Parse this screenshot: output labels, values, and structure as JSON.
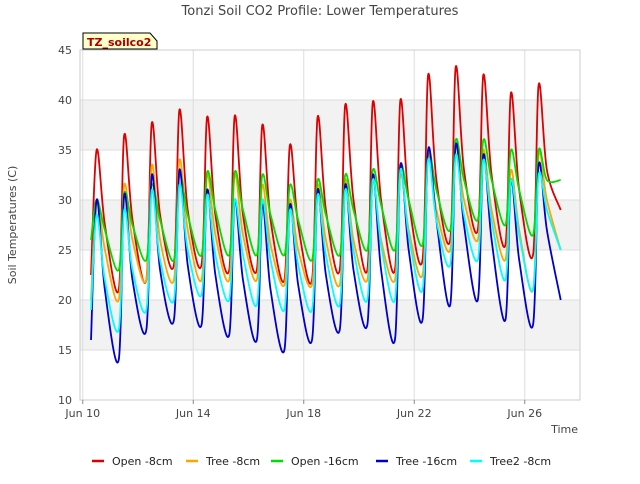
{
  "chart_data": {
    "type": "line",
    "title": "Tonzi Soil CO2 Profile: Lower Temperatures",
    "xlabel": "Time",
    "ylabel": "Soil Temperatures (C)",
    "annotation": "TZ_soilco2",
    "x_axis": {
      "min": "2000-06-10",
      "max": "2000-06-28",
      "tick_labels": [
        "Jun 10",
        "Jun 14",
        "Jun 18",
        "Jun 22",
        "Jun 26"
      ],
      "tick_days": [
        10,
        14,
        18,
        22,
        26
      ]
    },
    "y_axis": {
      "min": 10,
      "max": 45,
      "ticks": [
        10,
        15,
        20,
        25,
        30,
        35,
        40,
        45
      ]
    },
    "grid": true,
    "legend_position": "bottom",
    "days": [
      10.3,
      10.5,
      10.8,
      11.3,
      11.5,
      11.8,
      12.3,
      12.5,
      12.8,
      13.3,
      13.5,
      13.8,
      14.3,
      14.5,
      14.8,
      15.3,
      15.5,
      15.8,
      16.3,
      16.5,
      16.8,
      17.3,
      17.5,
      17.8,
      18.3,
      18.5,
      18.8,
      19.3,
      19.5,
      19.8,
      20.3,
      20.5,
      20.8,
      21.3,
      21.5,
      21.8,
      22.3,
      22.5,
      22.8,
      23.3,
      23.5,
      23.8,
      24.3,
      24.5,
      24.8,
      25.3,
      25.5,
      25.8,
      26.3,
      26.5,
      26.8,
      27.3,
      27.5,
      27.7
    ],
    "series": [
      {
        "name": "Open -8cm",
        "color": "#dd0000",
        "values": [
          22.5,
          35.0,
          27.5,
          21.0,
          36.5,
          28.0,
          22.0,
          37.7,
          28.5,
          23.5,
          39.0,
          29.0,
          23.5,
          38.3,
          28.5,
          23.0,
          38.4,
          28.5,
          23.0,
          37.5,
          28.0,
          22.0,
          35.5,
          27.5,
          22.0,
          38.3,
          29.0,
          23.0,
          39.5,
          30.0,
          23.0,
          39.8,
          30.0,
          23.0,
          40.0,
          30.0,
          24.0,
          42.5,
          32.0,
          26.0,
          43.3,
          33.0,
          27.0,
          42.5,
          32.5,
          25.5,
          40.7,
          31.0,
          24.5,
          41.5,
          33.0,
          29.0,
          null,
          null
        ]
      },
      {
        "name": "Tree -8cm",
        "color": "#ffa500",
        "values": [
          20.0,
          30.0,
          25.0,
          20.0,
          31.5,
          26.0,
          22.0,
          33.5,
          26.0,
          22.0,
          34.0,
          27.0,
          22.0,
          32.5,
          26.5,
          22.0,
          32.5,
          26.5,
          22.0,
          31.5,
          25.5,
          21.5,
          30.0,
          25.0,
          21.5,
          31.5,
          26.0,
          21.5,
          32.0,
          26.0,
          22.0,
          32.0,
          26.0,
          22.0,
          32.5,
          27.0,
          22.5,
          34.5,
          29.0,
          25.0,
          35.5,
          30.0,
          26.0,
          35.0,
          29.0,
          24.0,
          33.0,
          27.0,
          21.0,
          34.5,
          30.0,
          25.0,
          null,
          null
        ]
      },
      {
        "name": "Open -16cm",
        "color": "#00dd00",
        "values": [
          26.0,
          30.0,
          27.0,
          23.0,
          30.7,
          27.5,
          24.0,
          31.5,
          28.0,
          24.0,
          32.5,
          28.5,
          24.5,
          32.8,
          29.0,
          24.5,
          32.8,
          29.0,
          24.5,
          32.5,
          28.5,
          24.5,
          31.5,
          28.0,
          24.0,
          32.0,
          28.5,
          24.5,
          32.5,
          29.0,
          25.0,
          33.0,
          29.5,
          25.0,
          33.5,
          30.0,
          25.5,
          35.0,
          31.0,
          27.0,
          36.0,
          32.0,
          28.0,
          36.0,
          32.0,
          27.5,
          35.0,
          31.0,
          26.5,
          35.0,
          32.0,
          32.0,
          null,
          null
        ]
      },
      {
        "name": "Tree -16cm",
        "color": "#0000cc",
        "values": [
          16.0,
          30.0,
          21.0,
          14.0,
          30.5,
          22.0,
          17.0,
          32.5,
          23.0,
          18.0,
          33.0,
          23.5,
          17.5,
          31.0,
          22.5,
          16.5,
          30.0,
          22.0,
          16.0,
          29.5,
          21.0,
          15.0,
          29.5,
          21.5,
          16.0,
          31.0,
          22.5,
          17.0,
          31.5,
          23.0,
          17.5,
          32.5,
          23.0,
          16.0,
          33.5,
          25.0,
          18.0,
          35.0,
          28.0,
          19.5,
          35.5,
          27.5,
          20.0,
          34.5,
          26.0,
          18.0,
          32.0,
          24.0,
          17.5,
          33.5,
          27.0,
          20.0,
          null,
          null
        ]
      },
      {
        "name": "Tree2 -8cm",
        "color": "#00ffff",
        "values": [
          19.0,
          28.5,
          22.0,
          17.0,
          29.0,
          23.0,
          19.0,
          31.0,
          24.0,
          20.0,
          31.5,
          25.0,
          20.5,
          30.5,
          24.5,
          20.0,
          30.0,
          24.5,
          19.5,
          30.0,
          24.0,
          19.0,
          29.0,
          23.5,
          19.0,
          30.5,
          24.5,
          19.5,
          31.0,
          25.0,
          20.0,
          32.0,
          25.5,
          20.0,
          33.0,
          26.5,
          21.0,
          34.0,
          28.0,
          23.5,
          34.5,
          28.5,
          24.0,
          34.0,
          28.0,
          22.0,
          32.0,
          26.5,
          21.0,
          32.5,
          29.0,
          25.0,
          null,
          null
        ]
      }
    ]
  }
}
